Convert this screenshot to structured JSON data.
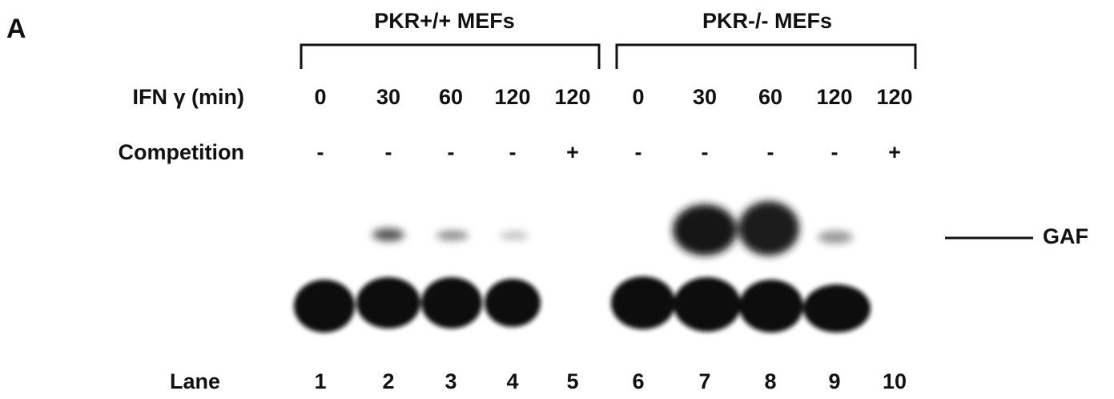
{
  "panel_label": "A",
  "groups": [
    {
      "label": "PKR+/+ MEFs"
    },
    {
      "label": "PKR-/- MEFs"
    }
  ],
  "rows": [
    {
      "label": "IFN γ (min)",
      "values": [
        "0",
        "30",
        "60",
        "120",
        "120",
        "0",
        "30",
        "60",
        "120",
        "120"
      ]
    },
    {
      "label": "Competition",
      "values": [
        "-",
        "-",
        "-",
        "-",
        "+",
        "-",
        "-",
        "-",
        "-",
        "+"
      ]
    },
    {
      "label": "Lane",
      "values": [
        "1",
        "2",
        "3",
        "4",
        "5",
        "6",
        "7",
        "8",
        "9",
        "10"
      ]
    }
  ],
  "band_label": "GAF"
}
